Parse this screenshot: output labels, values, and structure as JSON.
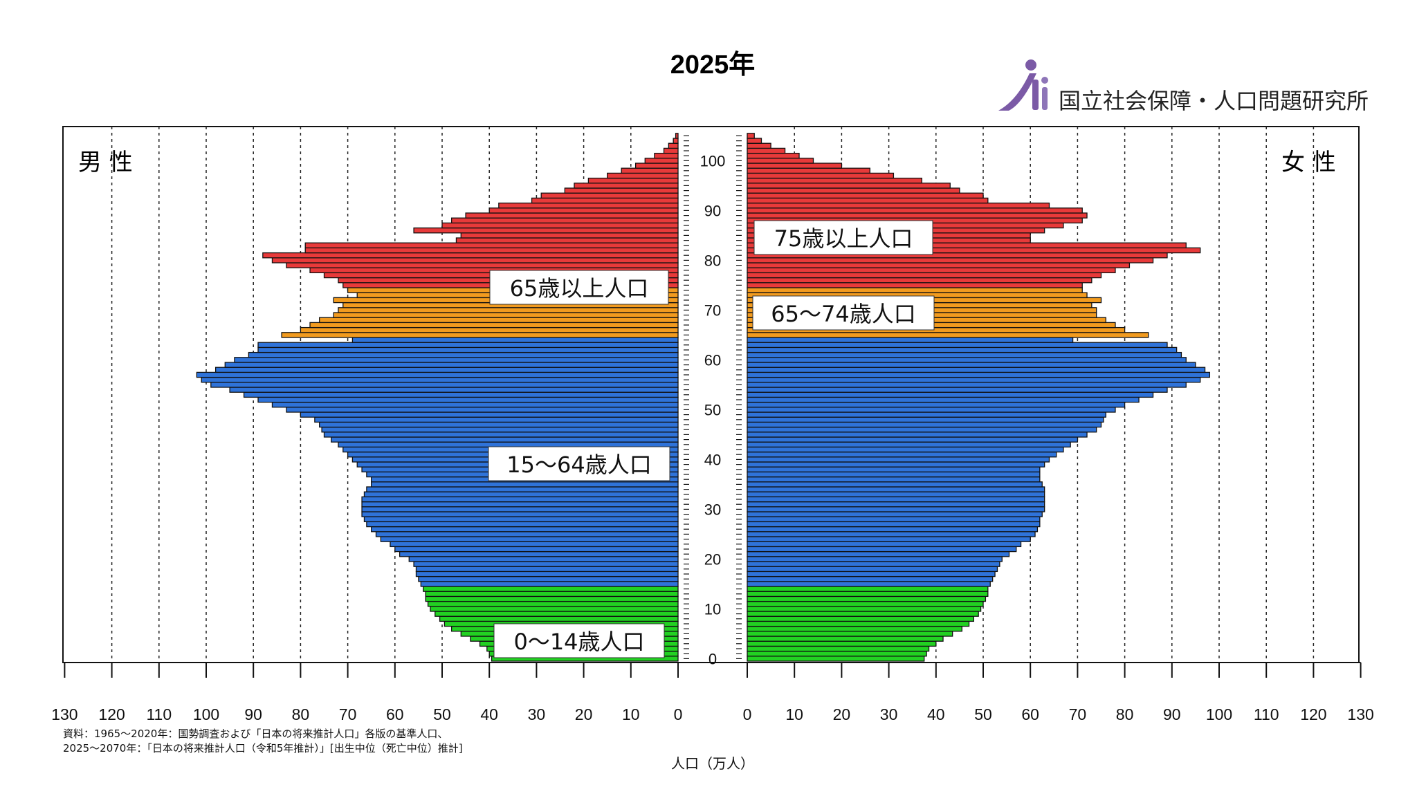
{
  "chart_data": {
    "type": "population-pyramid",
    "title": "2025年",
    "organization": "国立社会保障・人口問題研究所",
    "male_label": "男 性",
    "female_label": "女 性",
    "xlabel": "人口（万人）",
    "x_ticks": [
      0,
      10,
      20,
      30,
      40,
      50,
      60,
      70,
      80,
      90,
      100,
      110,
      120,
      130
    ],
    "xlim": [
      0,
      130
    ],
    "age_ticks": [
      0,
      10,
      20,
      30,
      40,
      50,
      60,
      70,
      80,
      90,
      100
    ],
    "age_range": [
      0,
      105
    ],
    "groups": [
      {
        "name": "0〜14歳人口",
        "min": 0,
        "max": 14,
        "color": "#22d122"
      },
      {
        "name": "15〜64歳人口",
        "min": 15,
        "max": 64,
        "color": "#2f73d9"
      },
      {
        "name": "65〜74歳人口",
        "min": 65,
        "max": 74,
        "color": "#f29b1f"
      },
      {
        "name": "75歳以上人口",
        "min": 75,
        "max": 105,
        "color": "#e83a3a"
      }
    ],
    "group_labels": {
      "g014": "0〜14歳人口",
      "g1564": "15〜64歳人口",
      "g65plus": "65歳以上人口",
      "g6574": "65〜74歳人口",
      "g75plus": "75歳以上人口"
    },
    "series": [
      {
        "name": "男性",
        "values": [
          39.5,
          40,
          40.5,
          42,
          44,
          46,
          48,
          49.5,
          50.5,
          51.5,
          52.5,
          53,
          53.5,
          53.5,
          54,
          54.5,
          55,
          55.5,
          55.5,
          56,
          57,
          59,
          60,
          61,
          63,
          64,
          65,
          66,
          66.5,
          67,
          67,
          67,
          67,
          66.5,
          66,
          65,
          65,
          66,
          67,
          68,
          69,
          70,
          71,
          72,
          73.5,
          75,
          75.5,
          76,
          77,
          80,
          83,
          86,
          89,
          92,
          95,
          99,
          101,
          102,
          98,
          96,
          94,
          91,
          89,
          89,
          69,
          84,
          80,
          78,
          76,
          73,
          72,
          71,
          73,
          68,
          70,
          71,
          72,
          75,
          78,
          83,
          86,
          88,
          79,
          79,
          47,
          46,
          56,
          50,
          48,
          45,
          40,
          38,
          31,
          29,
          24,
          22,
          19,
          15,
          12,
          9,
          7,
          5,
          3,
          2,
          1,
          0.5
        ]
      },
      {
        "name": "女性",
        "values": [
          37.5,
          38,
          38.5,
          40,
          41.5,
          43.5,
          45.5,
          47,
          48,
          49,
          49.5,
          50,
          50.5,
          51,
          51,
          51.5,
          52,
          52.5,
          53,
          53.5,
          54,
          55.5,
          57,
          58,
          60,
          61,
          61.5,
          62,
          62,
          62.5,
          63,
          63,
          63,
          63,
          63,
          62.5,
          62,
          62,
          62,
          63,
          64,
          65.5,
          67,
          68.5,
          70,
          72,
          74,
          75,
          75.5,
          76,
          78,
          80,
          83,
          86,
          89,
          93,
          96,
          98,
          97,
          95,
          93,
          92,
          91,
          89,
          69,
          85,
          80,
          78,
          76,
          74,
          74,
          73,
          75,
          72,
          71,
          71,
          73,
          75,
          78,
          81,
          86,
          89,
          96,
          93,
          60,
          60,
          63,
          67,
          71,
          72,
          71,
          64,
          51,
          50,
          45,
          43,
          37,
          31,
          26,
          20,
          14,
          11,
          8,
          5,
          3,
          1.5
        ]
      }
    ],
    "notes": [
      "資料：1965〜2020年：国勢調査および「日本の将来推計人口」各版の基準人口、",
      "2025〜2070年：「日本の将来推計人口（令和5年推計）」[出生中位（死亡中位）推計]"
    ]
  }
}
